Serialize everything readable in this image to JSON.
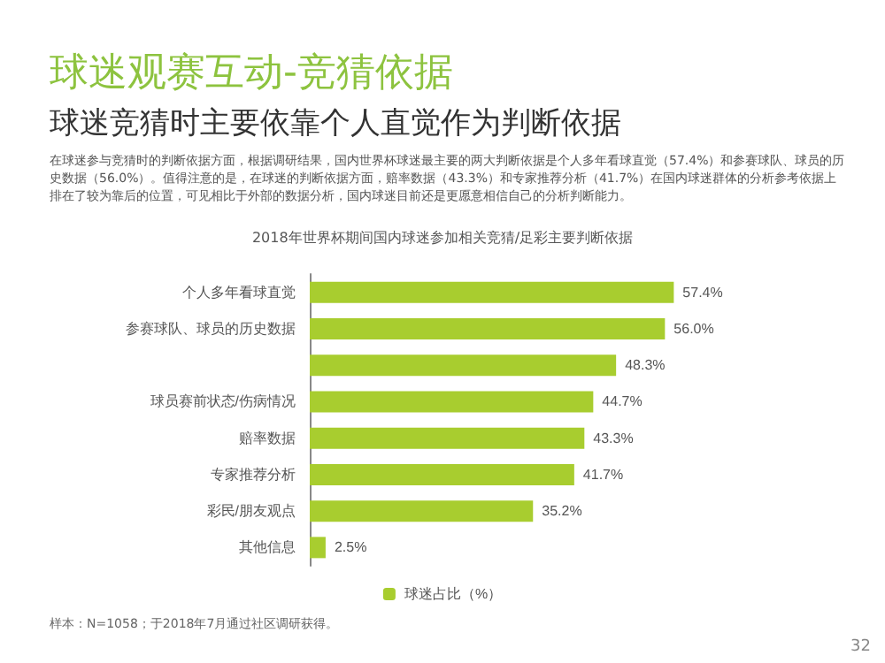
{
  "chart_data": {
    "type": "bar",
    "orientation": "horizontal",
    "title": "球迷观赛互动-竞猜依据",
    "subtitle": "球迷竞猜时主要依靠个人直觉作为判断依据",
    "annotations": [
      "在球迷参与竞猜时的判断依据方面，根据调研结果，国内世界杯球迷最主要的两大判断依据是个人多年看球直觉（57.4%）和参赛球队、球员的历史数据（56.0%）。值得注意的是，在球迷的判断依据方面，赔率数据（43.3%）和专家推荐分析（41.7%）在国内球迷群体的分析参考依据上排在了较为靠后的位置，可见相比于外部的数据分析，国内球迷目前还是更愿意相信自己的分析判断能力。",
      "2018年世界杯期间国内球迷参加相关竞猜/足彩主要判断依据",
      "样本：N=1058；于2018年7月通过社区调研获得。",
      "32"
    ],
    "categories": [
      "个人多年看球直觉",
      "参赛球队、球员的历史数据",
      null,
      "球员赛前状态/伤病情况",
      "赔率数据",
      "专家推荐分析",
      "彩民/朋友观点",
      "其他信息"
    ],
    "series": [
      {
        "name": "球迷占比（%）",
        "color": "#a8cd2f",
        "values": [
          57.4,
          56.0,
          48.3,
          44.7,
          43.3,
          41.7,
          35.2,
          2.5
        ],
        "value_labels": [
          "57.4%",
          "56.0%",
          "48.3%",
          "44.7%",
          "43.3%",
          "41.7%",
          "35.2%",
          "2.5%"
        ]
      }
    ],
    "legend": "bottom",
    "grid": false
  }
}
